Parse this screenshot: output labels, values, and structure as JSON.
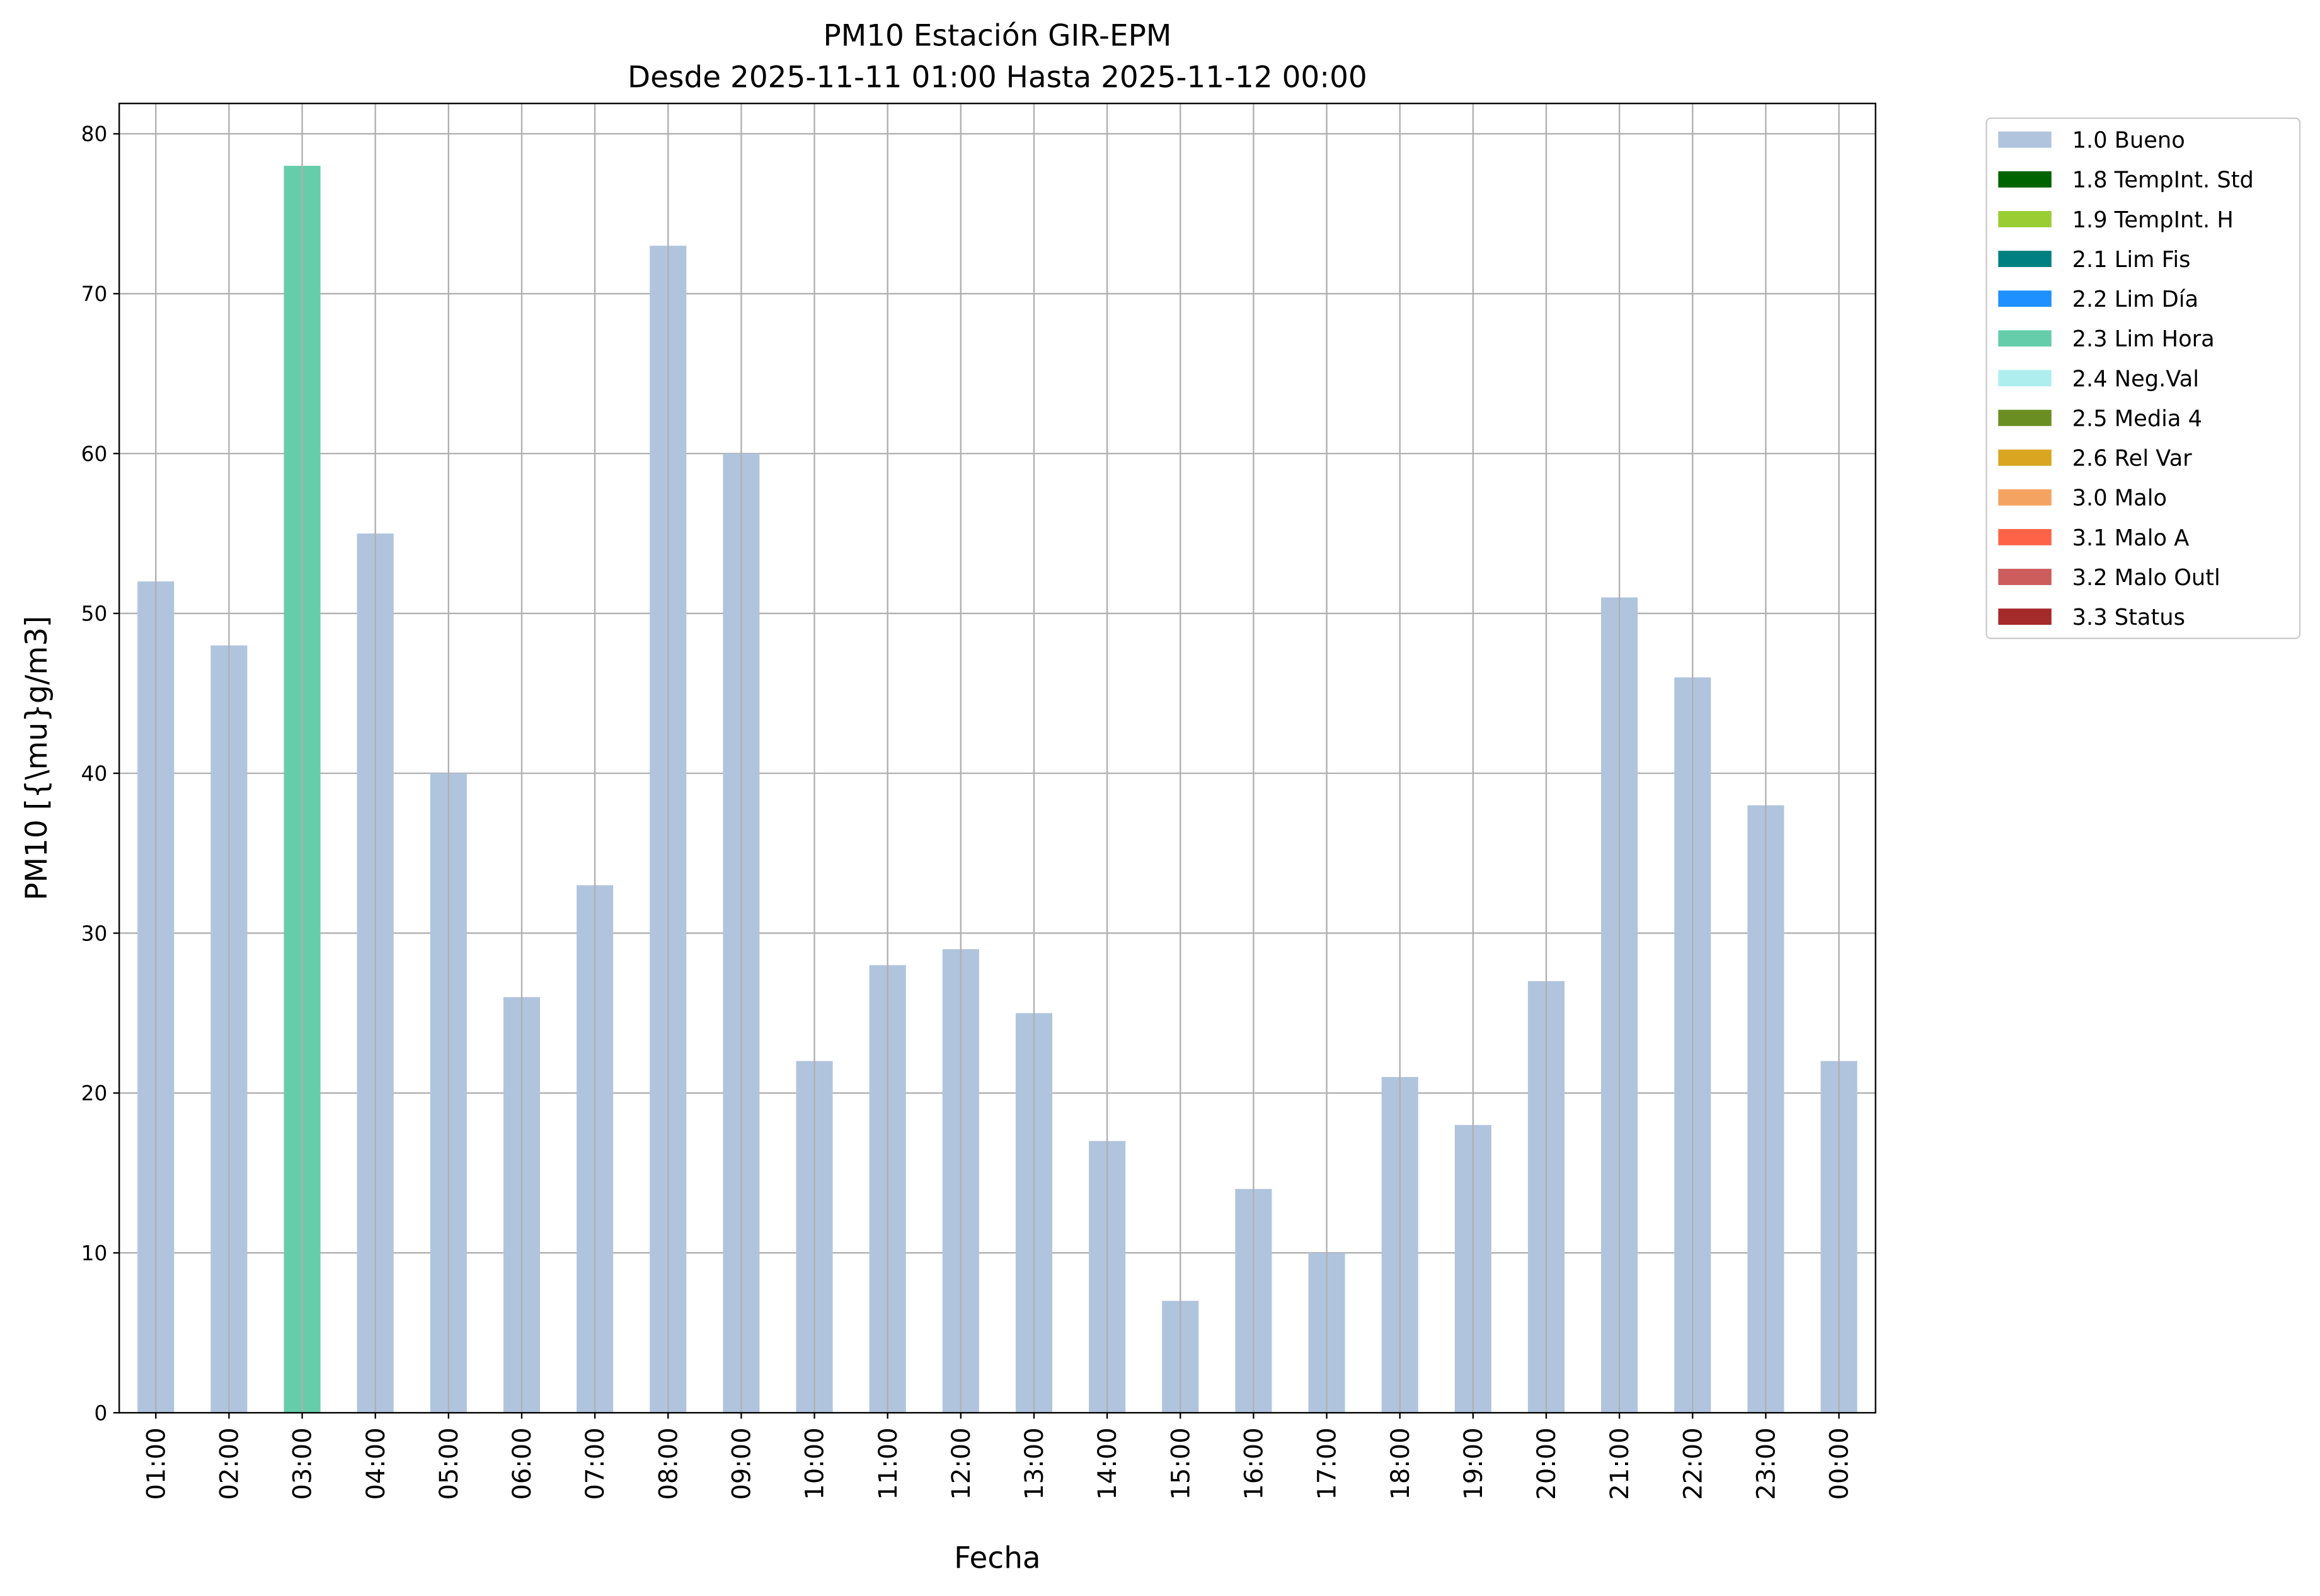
{
  "chart_data": {
    "type": "bar",
    "title": "PM10 Estación GIR-EPM",
    "subtitle": "Desde 2025-11-11 01:00 Hasta 2025-11-12 00:00",
    "xlabel": "Fecha",
    "ylabel": "PM10 [{\\mu}g/m3]",
    "ylim": [
      0,
      81.9
    ],
    "yticks": [
      0,
      10,
      20,
      30,
      40,
      50,
      60,
      70,
      80
    ],
    "grid": true,
    "legend_position": "outside-top-right",
    "categories": [
      "01:00",
      "02:00",
      "03:00",
      "04:00",
      "05:00",
      "06:00",
      "07:00",
      "08:00",
      "09:00",
      "10:00",
      "11:00",
      "12:00",
      "13:00",
      "14:00",
      "15:00",
      "16:00",
      "17:00",
      "18:00",
      "19:00",
      "20:00",
      "21:00",
      "22:00",
      "23:00",
      "00:00"
    ],
    "values": [
      52,
      48,
      78,
      55,
      40,
      26,
      33,
      73,
      60,
      22,
      28,
      29,
      25,
      17,
      7,
      14,
      10,
      21,
      18,
      27,
      51,
      46,
      38,
      22
    ],
    "flags": [
      "1.0 Bueno",
      "1.0 Bueno",
      "2.3 Lim Hora",
      "1.0 Bueno",
      "1.0 Bueno",
      "1.0 Bueno",
      "1.0 Bueno",
      "1.0 Bueno",
      "1.0 Bueno",
      "1.0 Bueno",
      "1.0 Bueno",
      "1.0 Bueno",
      "1.0 Bueno",
      "1.0 Bueno",
      "1.0 Bueno",
      "1.0 Bueno",
      "1.0 Bueno",
      "1.0 Bueno",
      "1.0 Bueno",
      "1.0 Bueno",
      "1.0 Bueno",
      "1.0 Bueno",
      "1.0 Bueno",
      "1.0 Bueno"
    ],
    "legend": [
      {
        "label": "1.0 Bueno",
        "color": "#b0c4de"
      },
      {
        "label": "1.8 TempInt. Std",
        "color": "#006400"
      },
      {
        "label": "1.9 TempInt. H",
        "color": "#9acd32"
      },
      {
        "label": "2.1 Lim Fis",
        "color": "#008080"
      },
      {
        "label": "2.2 Lim Día",
        "color": "#1e90ff"
      },
      {
        "label": "2.3 Lim Hora",
        "color": "#66cdaa"
      },
      {
        "label": "2.4 Neg.Val",
        "color": "#afeeee"
      },
      {
        "label": "2.5 Media 4",
        "color": "#6b8e23"
      },
      {
        "label": "2.6 Rel Var",
        "color": "#daa520"
      },
      {
        "label": "3.0 Malo",
        "color": "#f4a460"
      },
      {
        "label": "3.1 Malo A",
        "color": "#ff6347"
      },
      {
        "label": "3.2 Malo Outl",
        "color": "#cd5c5c"
      },
      {
        "label": "3.3 Status",
        "color": "#a52a2a"
      }
    ]
  }
}
